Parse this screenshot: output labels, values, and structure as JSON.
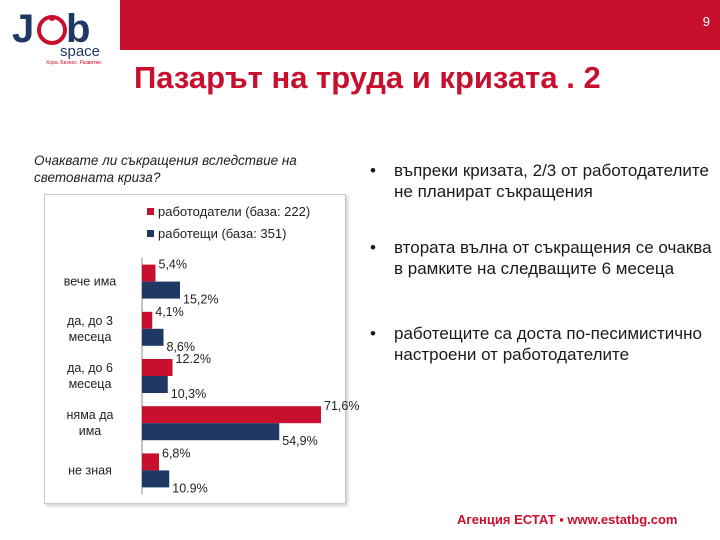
{
  "slide_number": "9",
  "logo": {
    "wordmark_j": "J",
    "wordmark_bs": "b",
    "wordmark_space": "space",
    "tagline": "Хора. Бизнес. Развитие."
  },
  "title": "Пазарът на труда и кризата . 2",
  "question": "Очаквате ли съкращения вследствие на световната криза?",
  "colors": {
    "accent": "#c8102e",
    "employers": "#c8102e",
    "employees": "#1f3864"
  },
  "chart_data": {
    "type": "bar",
    "orientation": "horizontal",
    "categories": [
      [
        "вече има"
      ],
      [
        "да, до 3",
        "месеца"
      ],
      [
        "да, до 6",
        "месеца"
      ],
      [
        "няма да",
        "има"
      ],
      [
        "не зная"
      ]
    ],
    "series": [
      {
        "name": "работодатели (база: 222)",
        "values": [
          5.4,
          4.1,
          12.2,
          71.6,
          6.8
        ],
        "labels": [
          "5,4%",
          "4,1%",
          "12.2%",
          "71,6%",
          "6,8%"
        ]
      },
      {
        "name": "работещи  (база: 351)",
        "values": [
          15.2,
          8.6,
          10.3,
          54.9,
          10.9
        ],
        "labels": [
          "15,2%",
          "8,6%",
          "10,3%",
          "54,9%",
          "10.9%"
        ]
      }
    ],
    "xlim": [
      0,
      80
    ],
    "legend": "top-right",
    "grid": false
  },
  "bullets": [
    "въпреки кризата, 2/3 от работодателите не планират съкращения",
    "втората вълна от съкращения се очаква в рамките на следващите 6 месеца",
    "работещите са доста по-песимистично настроени от работодателите"
  ],
  "bullet_symbol": "•",
  "footer": "Агенция ЕСТАТ ▪ www.estatbg.com"
}
